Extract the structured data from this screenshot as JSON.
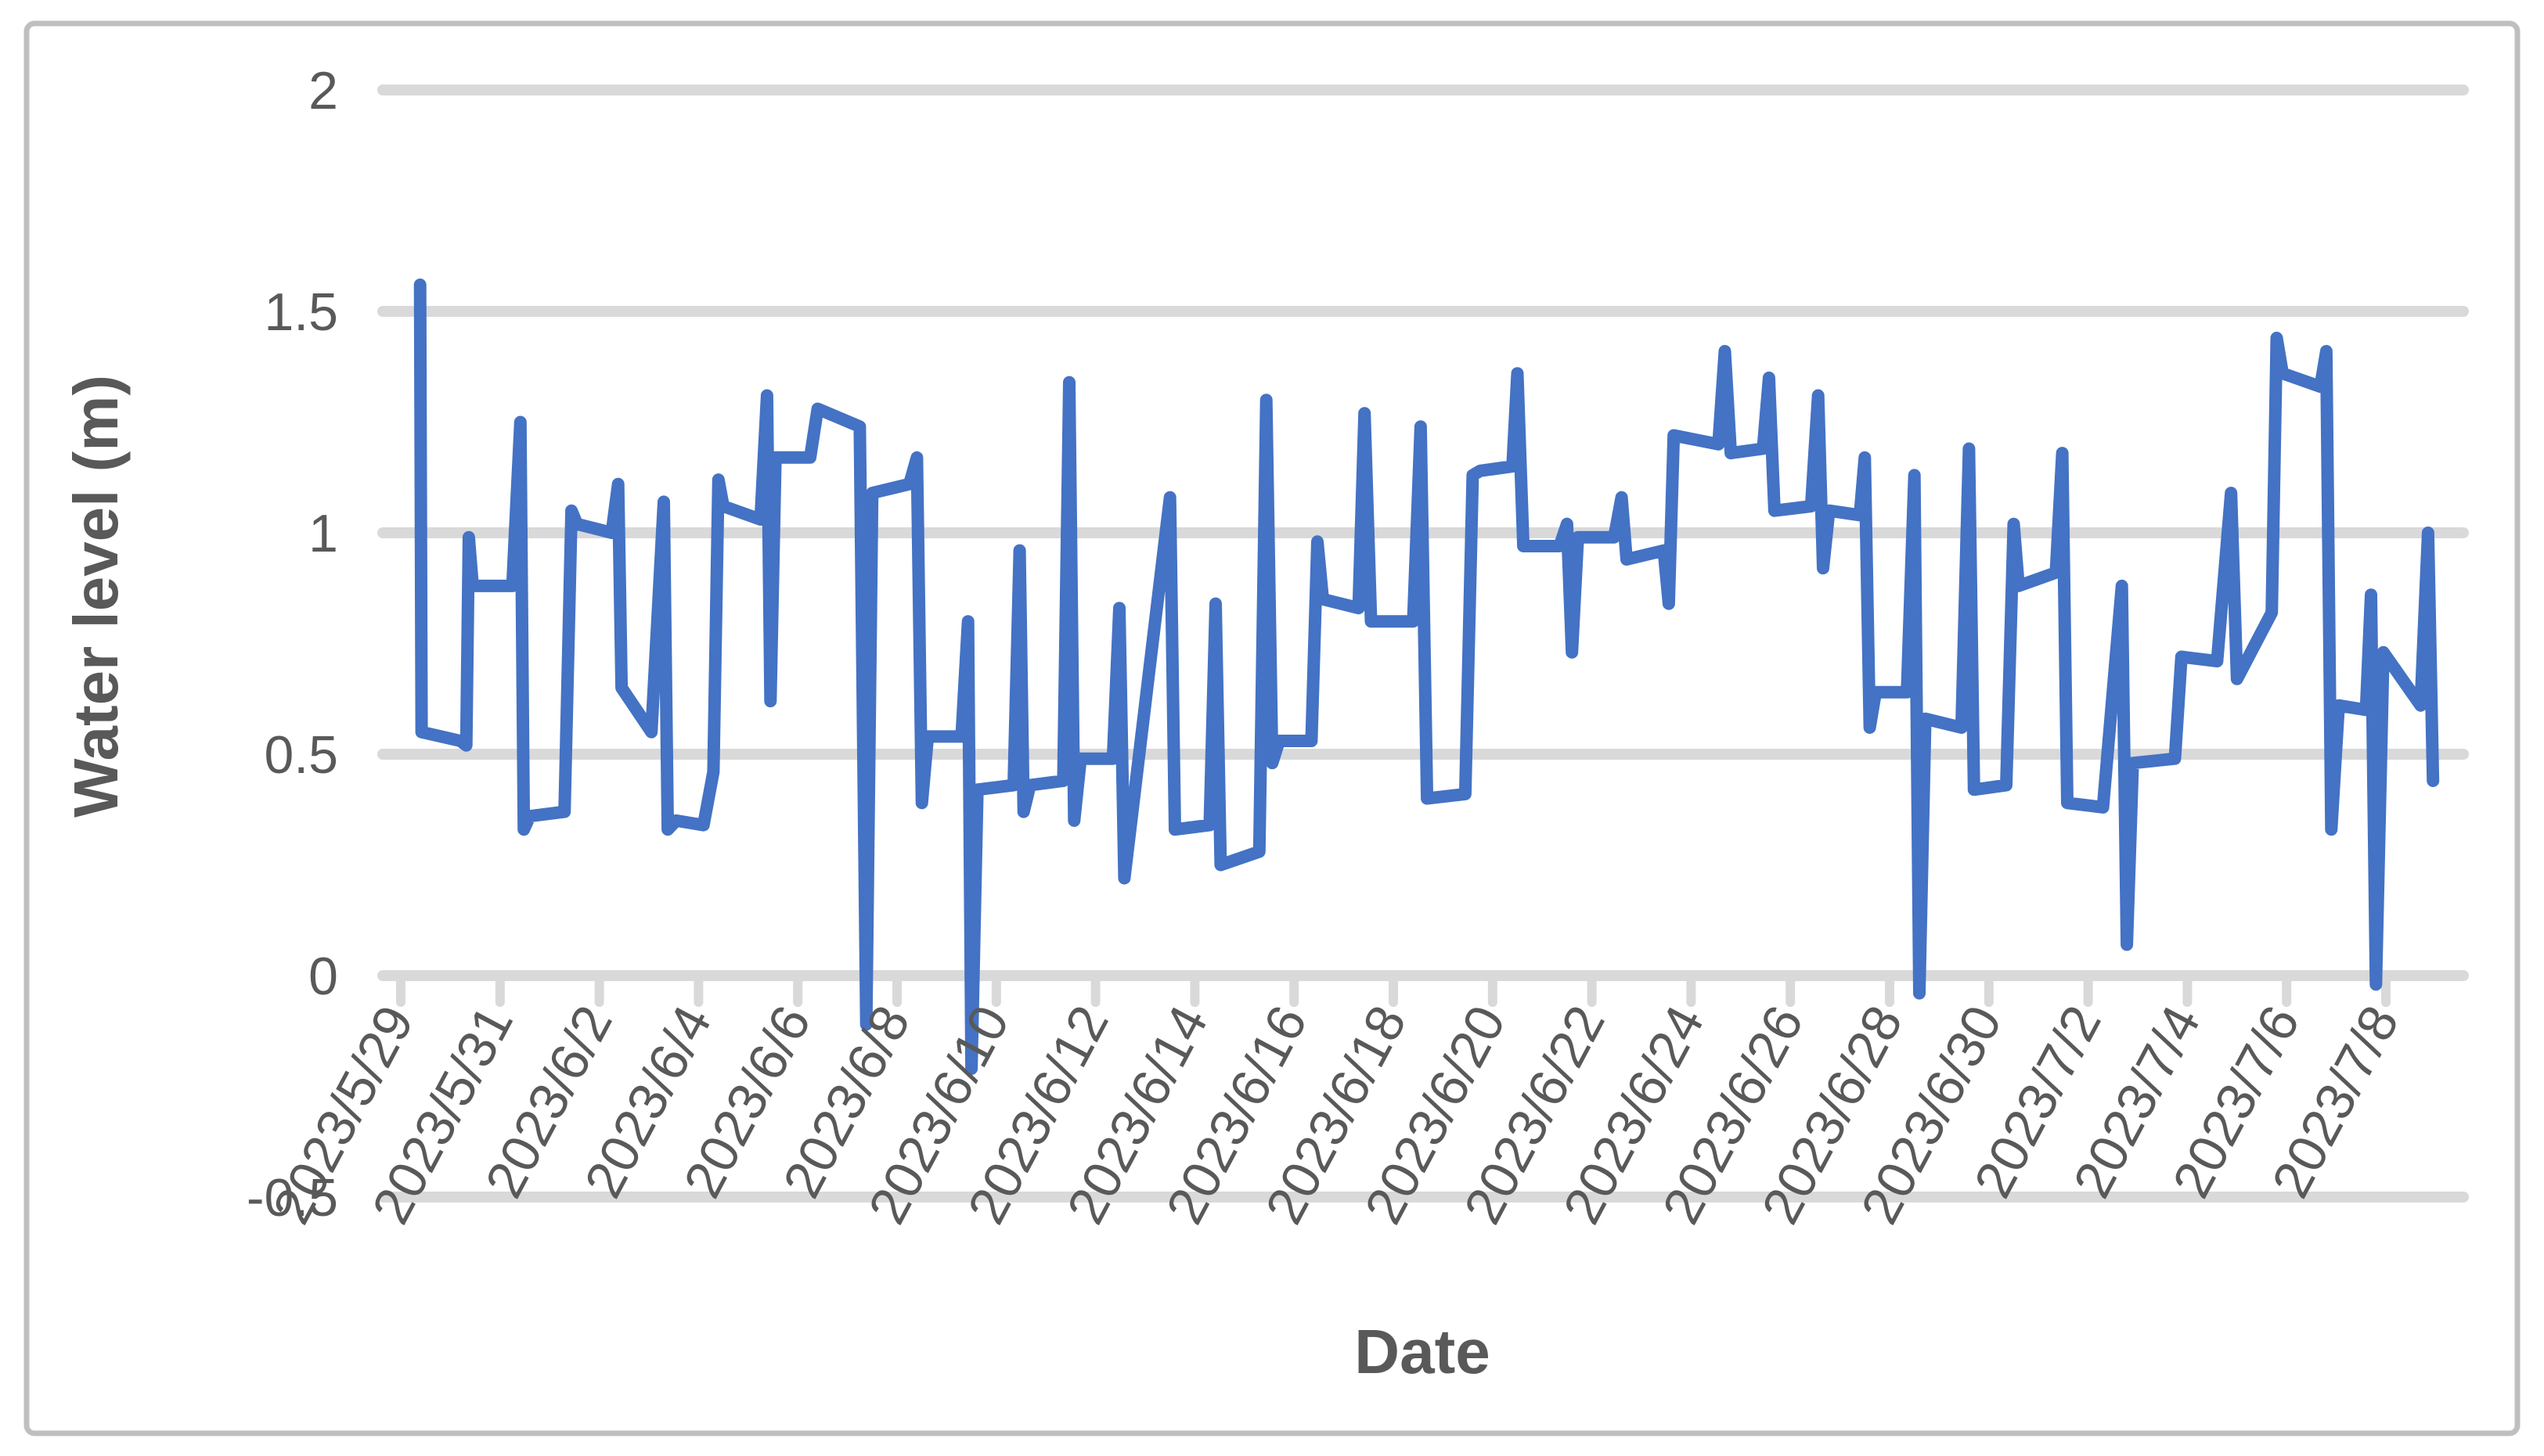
{
  "chart_data": {
    "type": "line",
    "title": "",
    "xlabel": "Date",
    "ylabel": "Water level (m)",
    "ylim": [
      -0.5,
      2
    ],
    "ytick_values": [
      2,
      1.5,
      1,
      0.5,
      0,
      -0.5
    ],
    "ytick_labels": [
      "2",
      "1.5",
      "1",
      "0.5",
      "0",
      "-0.5"
    ],
    "xtick_labels": [
      "2023/5/29",
      "2023/5/31",
      "2023/6/2",
      "2023/6/4",
      "2023/6/6",
      "2023/6/8",
      "2023/6/10",
      "2023/6/12",
      "2023/6/14",
      "2023/6/16",
      "2023/6/18",
      "2023/6/20",
      "2023/6/22",
      "2023/6/24",
      "2023/6/26",
      "2023/6/28",
      "2023/6/30",
      "2023/7/2",
      "2023/7/4",
      "2023/7/6",
      "2023/7/8"
    ],
    "xtick_positions_days": [
      0,
      2,
      4,
      6,
      8,
      10,
      12,
      14,
      16,
      18,
      20,
      22,
      24,
      26,
      28,
      30,
      32,
      34,
      36,
      38,
      40
    ],
    "x_unit": "days since 2023/5/29",
    "grid": "horizontal",
    "legend_position": "none",
    "series": [
      {
        "name": "Water level",
        "points": [
          [
            0.39,
            1.56
          ],
          [
            0.42,
            0.55
          ],
          [
            1.2,
            0.53
          ],
          [
            1.32,
            0.52
          ],
          [
            1.37,
            0.99
          ],
          [
            1.45,
            0.88
          ],
          [
            2.25,
            0.88
          ],
          [
            2.41,
            1.25
          ],
          [
            2.48,
            0.33
          ],
          [
            2.6,
            0.36
          ],
          [
            3.3,
            0.37
          ],
          [
            3.44,
            1.05
          ],
          [
            3.55,
            1.02
          ],
          [
            4.25,
            1.0
          ],
          [
            4.38,
            1.11
          ],
          [
            4.45,
            0.65
          ],
          [
            5.05,
            0.55
          ],
          [
            5.3,
            1.07
          ],
          [
            5.38,
            0.33
          ],
          [
            5.55,
            0.35
          ],
          [
            6.1,
            0.34
          ],
          [
            6.3,
            0.46
          ],
          [
            6.4,
            1.12
          ],
          [
            6.5,
            1.06
          ],
          [
            7.25,
            1.03
          ],
          [
            7.38,
            1.31
          ],
          [
            7.45,
            0.62
          ],
          [
            7.55,
            1.17
          ],
          [
            8.25,
            1.17
          ],
          [
            8.4,
            1.28
          ],
          [
            9.25,
            1.24
          ],
          [
            9.38,
            -0.11
          ],
          [
            9.5,
            1.09
          ],
          [
            10.25,
            1.11
          ],
          [
            10.4,
            1.17
          ],
          [
            10.5,
            0.39
          ],
          [
            10.62,
            0.54
          ],
          [
            11.3,
            0.54
          ],
          [
            11.43,
            0.8
          ],
          [
            11.5,
            -0.21
          ],
          [
            11.62,
            0.42
          ],
          [
            12.35,
            0.43
          ],
          [
            12.47,
            0.96
          ],
          [
            12.55,
            0.37
          ],
          [
            12.68,
            0.43
          ],
          [
            13.35,
            0.44
          ],
          [
            13.47,
            1.34
          ],
          [
            13.57,
            0.35
          ],
          [
            13.7,
            0.49
          ],
          [
            14.35,
            0.49
          ],
          [
            14.48,
            0.83
          ],
          [
            14.58,
            0.22
          ],
          [
            15.5,
            1.08
          ],
          [
            15.6,
            0.33
          ],
          [
            16.3,
            0.34
          ],
          [
            16.42,
            0.84
          ],
          [
            16.52,
            0.25
          ],
          [
            17.3,
            0.28
          ],
          [
            17.44,
            1.3
          ],
          [
            17.56,
            0.48
          ],
          [
            17.7,
            0.53
          ],
          [
            18.35,
            0.53
          ],
          [
            18.47,
            0.98
          ],
          [
            18.58,
            0.85
          ],
          [
            19.3,
            0.83
          ],
          [
            19.42,
            1.27
          ],
          [
            19.55,
            0.8
          ],
          [
            20.4,
            0.8
          ],
          [
            20.55,
            1.24
          ],
          [
            20.68,
            0.4
          ],
          [
            21.45,
            0.41
          ],
          [
            21.6,
            1.13
          ],
          [
            21.75,
            1.14
          ],
          [
            22.4,
            1.15
          ],
          [
            22.5,
            1.36
          ],
          [
            22.62,
            0.97
          ],
          [
            23.35,
            0.97
          ],
          [
            23.5,
            1.02
          ],
          [
            23.6,
            0.73
          ],
          [
            23.72,
            0.99
          ],
          [
            24.45,
            0.99
          ],
          [
            24.6,
            1.08
          ],
          [
            24.7,
            0.94
          ],
          [
            25.45,
            0.96
          ],
          [
            25.55,
            0.84
          ],
          [
            25.65,
            1.22
          ],
          [
            26.55,
            1.2
          ],
          [
            26.68,
            1.41
          ],
          [
            26.8,
            1.18
          ],
          [
            27.45,
            1.19
          ],
          [
            27.57,
            1.35
          ],
          [
            27.68,
            1.05
          ],
          [
            28.42,
            1.06
          ],
          [
            28.56,
            1.31
          ],
          [
            28.66,
            0.92
          ],
          [
            28.78,
            1.05
          ],
          [
            29.4,
            1.04
          ],
          [
            29.5,
            1.17
          ],
          [
            29.6,
            0.56
          ],
          [
            29.72,
            0.64
          ],
          [
            30.35,
            0.64
          ],
          [
            30.5,
            1.13
          ],
          [
            30.6,
            -0.04
          ],
          [
            30.72,
            0.58
          ],
          [
            31.45,
            0.56
          ],
          [
            31.6,
            1.19
          ],
          [
            31.7,
            0.42
          ],
          [
            32.35,
            0.43
          ],
          [
            32.5,
            1.02
          ],
          [
            32.6,
            0.88
          ],
          [
            33.35,
            0.91
          ],
          [
            33.48,
            1.18
          ],
          [
            33.58,
            0.39
          ],
          [
            34.3,
            0.38
          ],
          [
            34.68,
            0.88
          ],
          [
            34.78,
            0.07
          ],
          [
            34.9,
            0.48
          ],
          [
            35.75,
            0.49
          ],
          [
            35.88,
            0.72
          ],
          [
            36.6,
            0.71
          ],
          [
            36.88,
            1.09
          ],
          [
            37.0,
            0.67
          ],
          [
            37.7,
            0.82
          ],
          [
            37.8,
            1.44
          ],
          [
            37.92,
            1.36
          ],
          [
            38.68,
            1.33
          ],
          [
            38.8,
            1.41
          ],
          [
            38.9,
            0.33
          ],
          [
            39.05,
            0.61
          ],
          [
            39.6,
            0.6
          ],
          [
            39.7,
            0.86
          ],
          [
            39.8,
            -0.02
          ],
          [
            39.95,
            0.73
          ],
          [
            40.7,
            0.61
          ],
          [
            40.85,
            1.0
          ],
          [
            40.95,
            0.44
          ]
        ]
      }
    ]
  },
  "colors": {
    "series_blue": "#4472C4",
    "gridline_gray": "#D9D9D9",
    "tick_label_gray": "#595959",
    "axis_title_gray": "#595959",
    "border_gray": "#BFBFBF",
    "background": "#FFFFFF"
  }
}
